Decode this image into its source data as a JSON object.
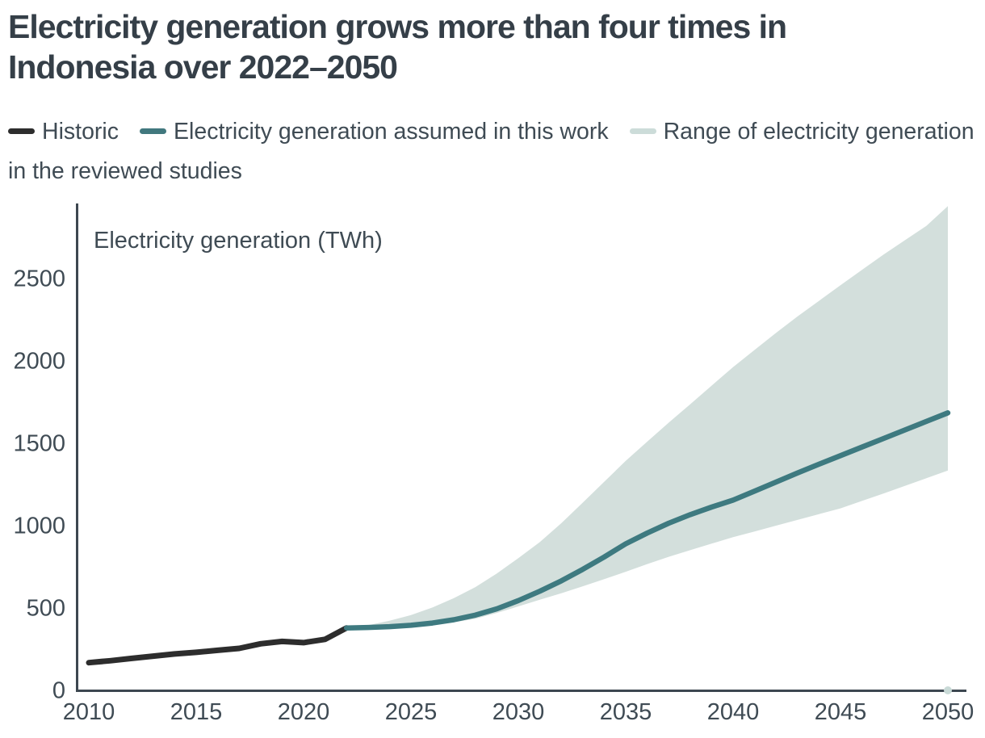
{
  "title": "Electricity generation grows more than four times in Indonesia over 2022–2050",
  "legend": [
    {
      "label": "Historic",
      "color": "#2d2d2d"
    },
    {
      "label": "Electricity generation assumed in this work",
      "color": "#41787e"
    },
    {
      "label": "Range of electricity generation in the reviewed studies",
      "color": "#ccdcd9"
    }
  ],
  "chart_data": {
    "type": "line",
    "title": "Electricity generation grows more than four times in Indonesia over 2022–2050",
    "y_axis_label": "Electricity generation (TWh)",
    "xlabel": "",
    "ylabel": "Electricity generation (TWh)",
    "xlim": [
      2010,
      2050
    ],
    "ylim": [
      0,
      2950
    ],
    "grid": false,
    "legend_position": "top",
    "xticks": [
      2010,
      2015,
      2020,
      2025,
      2030,
      2035,
      2040,
      2045,
      2050
    ],
    "yticks": [
      0,
      500,
      1000,
      1500,
      2000,
      2500
    ],
    "series": [
      {
        "name": "Historic",
        "type": "line",
        "color": "#2d2d2d",
        "x": [
          2010,
          2011,
          2012,
          2013,
          2014,
          2015,
          2016,
          2017,
          2018,
          2019,
          2020,
          2021,
          2022
        ],
        "y": [
          163,
          175,
          189,
          203,
          216,
          226,
          238,
          250,
          278,
          292,
          285,
          305,
          374
        ]
      },
      {
        "name": "Electricity generation assumed in this work",
        "type": "line",
        "color": "#3e7a80",
        "x": [
          2022,
          2023,
          2024,
          2025,
          2026,
          2027,
          2028,
          2029,
          2030,
          2031,
          2032,
          2033,
          2034,
          2035,
          2036,
          2037,
          2038,
          2039,
          2040,
          2041,
          2042,
          2043,
          2044,
          2045,
          2046,
          2047,
          2048,
          2049,
          2050
        ],
        "y": [
          374,
          377,
          382,
          390,
          404,
          424,
          452,
          490,
          540,
          597,
          660,
          730,
          805,
          885,
          950,
          1010,
          1062,
          1108,
          1150,
          1205,
          1260,
          1315,
          1368,
          1420,
          1472,
          1524,
          1576,
          1628,
          1680
        ]
      },
      {
        "name": "Range of electricity generation in the reviewed studies",
        "type": "band",
        "color": "#d3dfdc",
        "x": [
          2022,
          2023,
          2024,
          2025,
          2026,
          2027,
          2028,
          2029,
          2030,
          2031,
          2032,
          2033,
          2034,
          2035,
          2036,
          2037,
          2038,
          2039,
          2040,
          2041,
          2042,
          2043,
          2044,
          2045,
          2046,
          2047,
          2048,
          2049,
          2050
        ],
        "upper": [
          374,
          390,
          418,
          452,
          498,
          555,
          622,
          705,
          798,
          895,
          1010,
          1135,
          1262,
          1388,
          1505,
          1620,
          1732,
          1845,
          1958,
          2062,
          2165,
          2265,
          2360,
          2455,
          2548,
          2640,
          2728,
          2815,
          2935
        ],
        "lower": [
          374,
          375,
          378,
          382,
          392,
          408,
          430,
          465,
          505,
          545,
          585,
          627,
          670,
          715,
          762,
          806,
          846,
          886,
          925,
          960,
          995,
          1030,
          1065,
          1100,
          1145,
          1190,
          1237,
          1283,
          1330
        ]
      }
    ],
    "annotation_dot": {
      "x": 2050,
      "y": 0,
      "color": "#c9dad7"
    }
  }
}
